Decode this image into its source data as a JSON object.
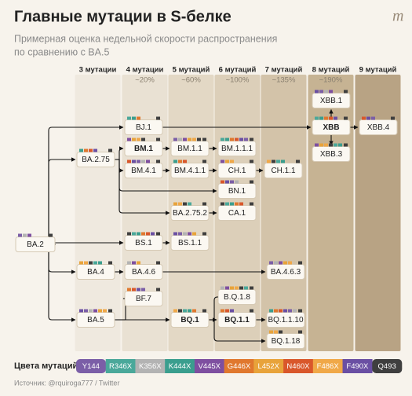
{
  "header": {
    "title": "Главные мутации в S-белке",
    "subtitle": [
      "Примерная оценка недельной скорости распространения",
      "по сравнению с BA.5"
    ],
    "logo": "m"
  },
  "columns": [
    {
      "label": "3 мутации"
    },
    {
      "label": "4 мутации",
      "share": "~20%"
    },
    {
      "label": "5 мутаций",
      "share": "~60%"
    },
    {
      "label": "6 мутаций",
      "share": "~100%"
    },
    {
      "label": "7 мутаций",
      "share": "~135%"
    },
    {
      "label": "8 мутаций",
      "share": "~190%"
    },
    {
      "label": "9 мутаций"
    }
  ],
  "nodes": [
    {
      "label": "BA.2"
    },
    {
      "label": "BA.2.75"
    },
    {
      "label": "BA.4"
    },
    {
      "label": "BA.5"
    },
    {
      "label": "BJ.1"
    },
    {
      "label": "BM.1",
      "bold": true
    },
    {
      "label": "BM.4.1"
    },
    {
      "label": "BS.1"
    },
    {
      "label": "BA.4.6"
    },
    {
      "label": "BF.7"
    },
    {
      "label": "BQ.1",
      "bold": true
    },
    {
      "label": "BM.1.1"
    },
    {
      "label": "BM.4.1.1"
    },
    {
      "label": "BA.2.75.2"
    },
    {
      "label": "BS.1.1"
    },
    {
      "label": "BM.1.1.1"
    },
    {
      "label": "CH.1"
    },
    {
      "label": "BN.1"
    },
    {
      "label": "CA.1"
    },
    {
      "label": "B.Q.1.8"
    },
    {
      "label": "BQ.1.1",
      "bold": true
    },
    {
      "label": "CH.1.1"
    },
    {
      "label": "BA.4.6.3"
    },
    {
      "label": "BQ.1.1.10"
    },
    {
      "label": "BQ.1.18"
    },
    {
      "label": "XBB.1"
    },
    {
      "label": "XBB",
      "bold": true
    },
    {
      "label": "XBB.3"
    },
    {
      "label": "XBB.4"
    }
  ],
  "legend": {
    "title": "Цвета мутаций",
    "items": [
      {
        "label": "Y144",
        "color": "#7b5ea7"
      },
      {
        "label": "R346X",
        "color": "#4aa89a"
      },
      {
        "label": "K356X",
        "color": "#b3b3b3"
      },
      {
        "label": "K444X",
        "color": "#3a9e8e"
      },
      {
        "label": "V445X",
        "color": "#7e4fa0"
      },
      {
        "label": "G446X",
        "color": "#e0782e"
      },
      {
        "label": "L452X",
        "color": "#e8a33a"
      },
      {
        "label": "N460X",
        "color": "#d9572b"
      },
      {
        "label": "F486X",
        "color": "#f0a848"
      },
      {
        "label": "F490X",
        "color": "#6a4fa3"
      },
      {
        "label": "Q493",
        "color": "#3f3f3f"
      }
    ]
  },
  "source": "Источник: @rquiroga777 / Twitter"
}
